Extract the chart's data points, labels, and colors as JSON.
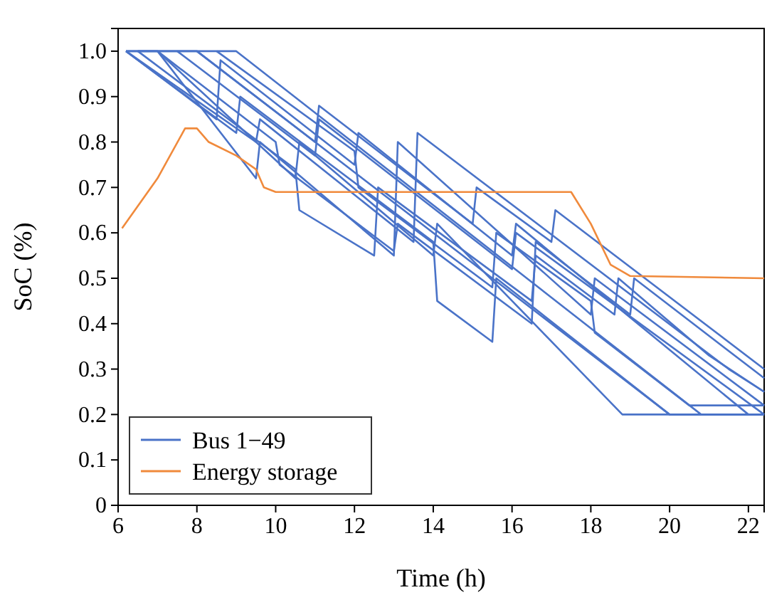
{
  "chart_data": {
    "type": "line",
    "xlabel": "Time (h)",
    "ylabel": "SoC (%)",
    "xlim": [
      6,
      22.4
    ],
    "ylim": [
      0,
      1.05
    ],
    "xticks": [
      6,
      8,
      10,
      12,
      14,
      16,
      18,
      20,
      22
    ],
    "yticks": [
      0,
      0.1,
      0.2,
      0.3,
      0.4,
      0.5,
      0.6,
      0.7,
      0.8,
      0.9,
      {
        "value": 1,
        "label": "1.0"
      }
    ],
    "grid": false,
    "legend": "bottom left",
    "line_style": "solid",
    "marker": "none",
    "series": [
      {
        "name": "Bus 1−49",
        "color": "#4a73c8",
        "x": [
          6.2,
          8,
          20,
          22.4
        ],
        "values": [
          1,
          1,
          0.2,
          0.2
        ]
      },
      {
        "color": "#4a73c8",
        "x": [
          6.2,
          9,
          20.8,
          22.4
        ],
        "values": [
          1,
          1,
          0.2,
          0.2
        ]
      },
      {
        "color": "#4a73c8",
        "x": [
          6.5,
          7,
          10.5,
          10.6,
          14,
          14.1,
          18.8,
          22.4
        ],
        "values": [
          1,
          1,
          0.72,
          0.8,
          0.55,
          0.62,
          0.2,
          0.2
        ]
      },
      {
        "color": "#4a73c8",
        "x": [
          7,
          9.5,
          9.6,
          13,
          13.1,
          18,
          18.1,
          22.4
        ],
        "values": [
          1,
          0.72,
          0.8,
          0.55,
          0.8,
          0.42,
          0.5,
          0.22
        ]
      },
      {
        "color": "#4a73c8",
        "x": [
          6.2,
          8.5,
          8.6,
          12,
          12.1,
          16,
          16.1,
          22,
          22.4
        ],
        "values": [
          1,
          0.85,
          0.98,
          0.75,
          0.82,
          0.55,
          0.62,
          0.2,
          0.2
        ]
      },
      {
        "color": "#4a73c8",
        "x": [
          8,
          11,
          11.1,
          15,
          15.1,
          17,
          17.1,
          22.4
        ],
        "values": [
          1,
          0.8,
          0.88,
          0.62,
          0.7,
          0.58,
          0.65,
          0.3
        ]
      },
      {
        "color": "#4a73c8",
        "x": [
          6.2,
          9.5,
          9.6,
          13.5,
          13.6,
          21.5,
          22.4
        ],
        "values": [
          1,
          0.8,
          0.85,
          0.58,
          0.82,
          0.3,
          0.25
        ]
      },
      {
        "color": "#4a73c8",
        "x": [
          7.5,
          11,
          11.1,
          16,
          16.1,
          22.4
        ],
        "values": [
          1,
          0.77,
          0.85,
          0.52,
          0.6,
          0.2
        ]
      },
      {
        "color": "#4a73c8",
        "x": [
          6.5,
          10.5,
          10.6,
          12.5,
          12.6,
          16.5,
          16.6,
          18.6,
          18.7,
          21,
          22.4
        ],
        "values": [
          1,
          0.74,
          0.65,
          0.55,
          0.7,
          0.45,
          0.55,
          0.42,
          0.5,
          0.33,
          0.25
        ]
      },
      {
        "color": "#4a73c8",
        "x": [
          8.5,
          12,
          12.1,
          15.5,
          15.6,
          18,
          18.1,
          20.5,
          22.4
        ],
        "values": [
          1,
          0.78,
          0.7,
          0.48,
          0.6,
          0.45,
          0.38,
          0.22,
          0.22
        ]
      },
      {
        "color": "#4a73c8",
        "x": [
          6.2,
          9,
          9.1,
          14,
          14.1,
          15.5,
          15.6,
          20,
          22.4
        ],
        "values": [
          1,
          0.82,
          0.9,
          0.58,
          0.45,
          0.36,
          0.5,
          0.2,
          0.2
        ]
      },
      {
        "color": "#4a73c8",
        "x": [
          7,
          10,
          10.1,
          13,
          13.1,
          16.5,
          16.6,
          19,
          19.1,
          22.4
        ],
        "values": [
          1,
          0.8,
          0.75,
          0.56,
          0.62,
          0.4,
          0.58,
          0.42,
          0.5,
          0.28
        ]
      },
      {
        "name": "Energy storage",
        "color": "#f08a3c",
        "x": [
          6.1,
          7,
          7.7,
          8,
          8.3,
          9,
          9.5,
          9.7,
          10,
          17.5,
          18,
          18.5,
          19,
          22.4
        ],
        "values": [
          0.61,
          0.72,
          0.83,
          0.83,
          0.8,
          0.77,
          0.74,
          0.7,
          0.69,
          0.69,
          0.62,
          0.53,
          0.505,
          0.5
        ]
      }
    ]
  }
}
